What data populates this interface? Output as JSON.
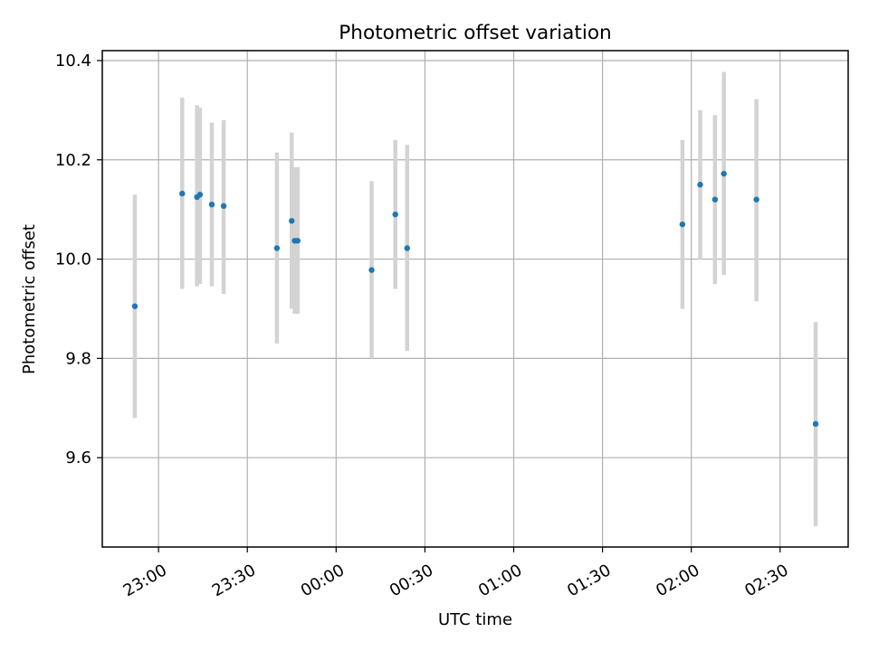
{
  "chart_data": {
    "type": "scatter",
    "title": "Photometric offset variation",
    "xlabel": "UTC time",
    "ylabel": "Photometric offset",
    "grid": true,
    "legend": "none",
    "xlim": [
      "22:41",
      "02:53"
    ],
    "ylim": [
      9.42,
      10.42
    ],
    "x_ticks": [
      "23:00",
      "23:30",
      "00:00",
      "00:30",
      "01:00",
      "01:30",
      "02:00",
      "02:30"
    ],
    "y_ticks": [
      "9.6",
      "9.8",
      "10.0",
      "10.2",
      "10.4"
    ],
    "colors": {
      "point": "#1f77b4",
      "errorbar": "#d3d3d3",
      "grid": "#b0b0b0",
      "axes": "#000000"
    },
    "series": [
      {
        "points": [
          {
            "x": "22:52",
            "y": 9.905,
            "low": 9.68,
            "high": 10.13
          },
          {
            "x": "23:08",
            "y": 10.132,
            "low": 9.94,
            "high": 10.325
          },
          {
            "x": "23:13",
            "y": 10.125,
            "low": 9.945,
            "high": 10.31
          },
          {
            "x": "23:14",
            "y": 10.13,
            "low": 9.95,
            "high": 10.305
          },
          {
            "x": "23:18",
            "y": 10.11,
            "low": 9.945,
            "high": 10.275
          },
          {
            "x": "23:22",
            "y": 10.107,
            "low": 9.93,
            "high": 10.28
          },
          {
            "x": "23:40",
            "y": 10.022,
            "low": 9.83,
            "high": 10.215
          },
          {
            "x": "23:45",
            "y": 10.077,
            "low": 9.9,
            "high": 10.255
          },
          {
            "x": "23:46",
            "y": 10.037,
            "low": 9.89,
            "high": 10.185
          },
          {
            "x": "23:47",
            "y": 10.037,
            "low": 9.89,
            "high": 10.185
          },
          {
            "x": "00:12",
            "y": 9.978,
            "low": 9.8,
            "high": 10.157
          },
          {
            "x": "00:20",
            "y": 10.09,
            "low": 9.94,
            "high": 10.24
          },
          {
            "x": "00:24",
            "y": 10.022,
            "low": 9.815,
            "high": 10.23
          },
          {
            "x": "01:57",
            "y": 10.07,
            "low": 9.9,
            "high": 10.24
          },
          {
            "x": "02:03",
            "y": 10.15,
            "low": 10.0,
            "high": 10.3
          },
          {
            "x": "02:08",
            "y": 10.12,
            "low": 9.95,
            "high": 10.29
          },
          {
            "x": "02:11",
            "y": 10.172,
            "low": 9.968,
            "high": 10.377
          },
          {
            "x": "02:22",
            "y": 10.12,
            "low": 9.915,
            "high": 10.322
          },
          {
            "x": "02:42",
            "y": 9.668,
            "low": 9.462,
            "high": 9.873
          }
        ]
      }
    ]
  }
}
